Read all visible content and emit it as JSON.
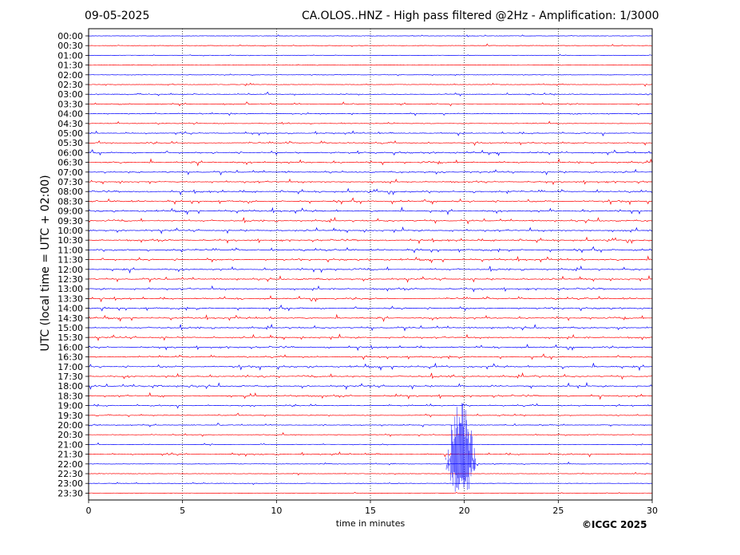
{
  "header": {
    "date": "09-05-2025",
    "title": "CA.OLOS..HNZ - High pass filtered @2Hz - Amplification: 1/3000"
  },
  "footer": {
    "copyright": "©ICGC 2025"
  },
  "chart_data": {
    "type": "line",
    "title": "CA.OLOS..HNZ - High pass filtered @2Hz - Amplification: 1/3000",
    "xlabel": "time in minutes",
    "ylabel": "UTC (local time = UTC + 02:00)",
    "xlim": [
      0,
      30
    ],
    "x_ticks": [
      0,
      5,
      10,
      15,
      20,
      25,
      30
    ],
    "x_tick_labels": [
      "0",
      "5",
      "10",
      "15",
      "20",
      "25",
      "30"
    ],
    "grid": "vertical dotted lines at 5-minute intervals",
    "trace_colors": [
      "#0000ff",
      "#ff0000"
    ],
    "rows": [
      "00:00",
      "00:30",
      "01:00",
      "01:30",
      "02:00",
      "02:30",
      "03:00",
      "03:30",
      "04:00",
      "04:30",
      "05:00",
      "05:30",
      "06:00",
      "06:30",
      "07:00",
      "07:30",
      "08:00",
      "08:30",
      "09:00",
      "09:30",
      "10:00",
      "10:30",
      "11:00",
      "11:30",
      "12:00",
      "12:30",
      "13:00",
      "13:30",
      "14:00",
      "14:30",
      "15:00",
      "15:30",
      "16:00",
      "16:30",
      "17:00",
      "17:30",
      "18:00",
      "18:30",
      "19:00",
      "19:30",
      "20:00",
      "20:30",
      "21:00",
      "21:30",
      "22:00",
      "22:30",
      "23:00",
      "23:30"
    ],
    "row_color_pattern": [
      "#0000ff",
      "#ff0000"
    ],
    "row_activity": [
      0.05,
      0.05,
      0.05,
      0.05,
      0.05,
      0.1,
      0.2,
      0.25,
      0.2,
      0.2,
      0.3,
      0.4,
      0.45,
      0.5,
      0.5,
      0.5,
      0.55,
      0.6,
      0.55,
      0.55,
      0.55,
      0.55,
      0.55,
      0.5,
      0.55,
      0.55,
      0.55,
      0.5,
      0.5,
      0.5,
      0.55,
      0.55,
      0.5,
      0.45,
      0.6,
      0.6,
      0.6,
      0.6,
      0.3,
      0.2,
      0.2,
      0.15,
      0.1,
      0.3,
      0.1,
      0.05,
      0.05,
      0.05
    ],
    "event": {
      "start_row": "19:00",
      "end_row": "23:30",
      "x_minutes": [
        19.0,
        20.6
      ],
      "peak_minute": 20.0
    }
  }
}
